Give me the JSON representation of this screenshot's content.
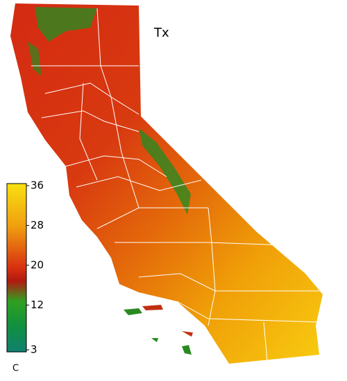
{
  "map": {
    "title": "Tx",
    "colorbar": {
      "label": "C",
      "lim": [
        3,
        36
      ],
      "ticks": [
        36,
        28,
        20,
        12,
        3
      ]
    }
  }
}
